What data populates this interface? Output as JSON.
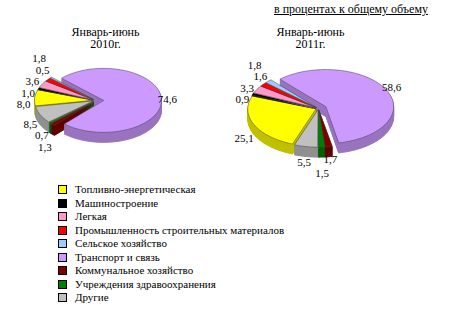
{
  "chart_data": {
    "type": "pie",
    "subtitle": "в процентах к общему объему",
    "categories": [
      "Топливно-энергетическая",
      "Машиностроение",
      "Легкая",
      "Промышленность строительных материалов",
      "Сельское хозяйство",
      "Транспорт и связь",
      "Коммунальное хозяйство",
      "Учреждения здравоохранения",
      "Другие"
    ],
    "colors": [
      "#ffff00",
      "#000000",
      "#ff99cc",
      "#ff0000",
      "#99ccff",
      "#cc99ff",
      "#800000",
      "#008000",
      "#c0c0c0"
    ],
    "legend": "bottom",
    "data_labels": true,
    "series": [
      {
        "name": "Январь-июнь 2010г.",
        "values": [
          8.0,
          1.0,
          3.6,
          1.8,
          0.5,
          74.6,
          1.3,
          0.7,
          8.5
        ],
        "value_labels": [
          "8,0",
          "1,0",
          "3,6",
          "1,8",
          "0,5",
          "74,6",
          "1,3",
          "0,7",
          "8,5"
        ]
      },
      {
        "name": "Январь-июнь 2011г.",
        "values": [
          25.1,
          0.9,
          3.3,
          1.8,
          1.6,
          58.6,
          1.7,
          1.5,
          5.5
        ],
        "value_labels": [
          "25,1",
          "0,9",
          "3,3",
          "1,8",
          "1,6",
          "58,6",
          "1,7",
          "1,5",
          "5,5"
        ]
      }
    ]
  }
}
